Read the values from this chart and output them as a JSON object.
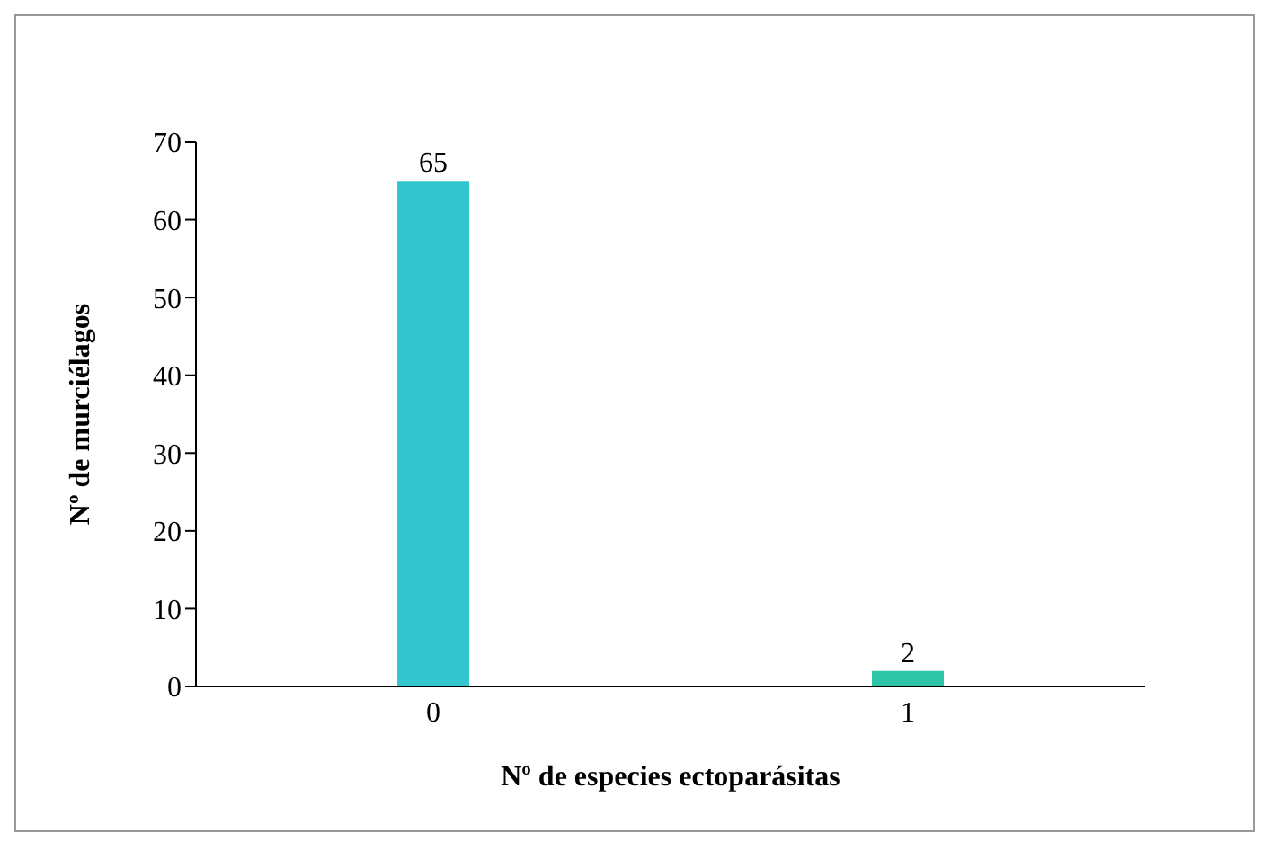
{
  "chart_data": {
    "type": "bar",
    "xlabel": "Nº de especies ectoparásitas",
    "ylabel": "Nº de murciélagos",
    "categories": [
      "0",
      "1"
    ],
    "values": [
      65,
      2
    ],
    "colors": [
      "#33c6cf",
      "#2ec4a6"
    ],
    "ylim": [
      0,
      70
    ],
    "yticks": [
      0,
      10,
      20,
      30,
      40,
      50,
      60,
      70
    ],
    "data_labels": true,
    "grid": false,
    "legend": false
  }
}
